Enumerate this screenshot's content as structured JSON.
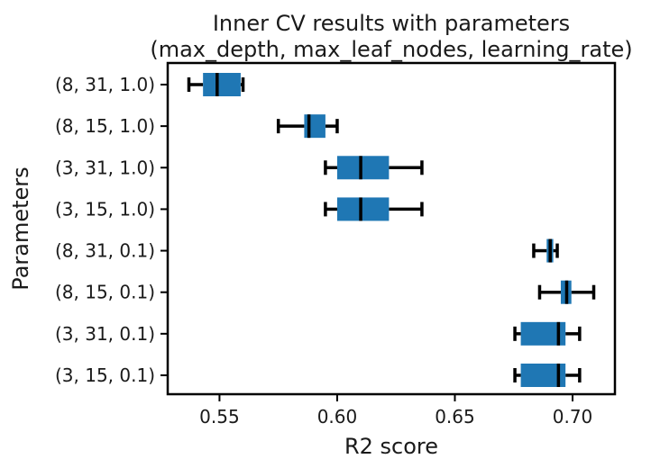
{
  "chart_data": {
    "type": "boxplot",
    "orientation": "horizontal",
    "title_line1": "Inner CV results with parameters",
    "title_line2": "(max_depth, max_leaf_nodes, learning_rate)",
    "xlabel": "R2 score",
    "ylabel": "Parameters",
    "xlim": [
      0.528,
      0.718
    ],
    "xticks": [
      0.55,
      0.6,
      0.65,
      0.7
    ],
    "xtick_labels": [
      "0.55",
      "0.60",
      "0.65",
      "0.70"
    ],
    "grid": false,
    "box_color": "#1f77b4",
    "categories": [
      "(8, 31, 1.0)",
      "(8, 15, 1.0)",
      "(3, 31, 1.0)",
      "(3, 15, 1.0)",
      "(8, 31, 0.1)",
      "(8, 15, 0.1)",
      "(3, 31, 0.1)",
      "(3, 15, 0.1)"
    ],
    "boxes": [
      {
        "whisker_low": 0.537,
        "q1": 0.543,
        "median": 0.549,
        "q3": 0.559,
        "whisker_high": 0.56
      },
      {
        "whisker_low": 0.575,
        "q1": 0.586,
        "median": 0.588,
        "q3": 0.595,
        "whisker_high": 0.6
      },
      {
        "whisker_low": 0.595,
        "q1": 0.6,
        "median": 0.61,
        "q3": 0.622,
        "whisker_high": 0.636
      },
      {
        "whisker_low": 0.595,
        "q1": 0.6,
        "median": 0.61,
        "q3": 0.622,
        "whisker_high": 0.636
      },
      {
        "whisker_low": 0.6835,
        "q1": 0.689,
        "median": 0.6905,
        "q3": 0.6918,
        "whisker_high": 0.6935
      },
      {
        "whisker_low": 0.686,
        "q1": 0.695,
        "median": 0.6975,
        "q3": 0.6995,
        "whisker_high": 0.709
      },
      {
        "whisker_low": 0.6755,
        "q1": 0.678,
        "median": 0.694,
        "q3": 0.697,
        "whisker_high": 0.703
      },
      {
        "whisker_low": 0.6755,
        "q1": 0.678,
        "median": 0.694,
        "q3": 0.697,
        "whisker_high": 0.703
      }
    ]
  }
}
